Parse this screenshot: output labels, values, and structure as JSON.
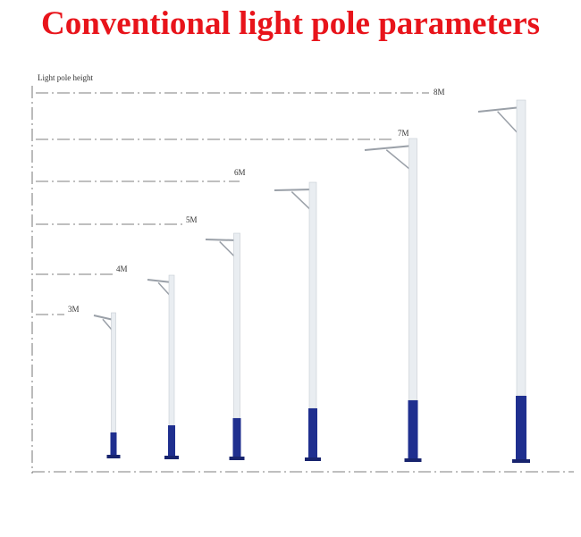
{
  "header": {
    "title": "Conventional light pole parameters"
  },
  "diagram": {
    "axis_label": "Light pole height",
    "poles": [
      {
        "label": "3M"
      },
      {
        "label": "4M"
      },
      {
        "label": "5M"
      },
      {
        "label": "6M"
      },
      {
        "label": "7M"
      },
      {
        "label": "8M"
      }
    ]
  }
}
